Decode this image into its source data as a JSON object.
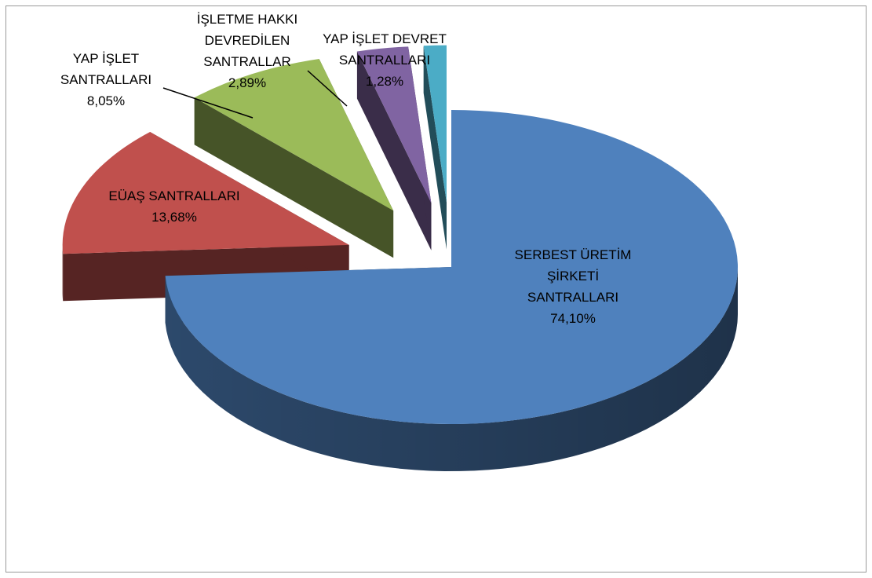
{
  "chart_data": {
    "type": "pie",
    "style": "3d-exploded",
    "slices": [
      {
        "label_lines": [
          "SERBEST ÜRETİM",
          "ŞİRKETİ",
          "SANTRALLARI"
        ],
        "value_text": "74,10%",
        "value": 74.1,
        "color": "#4F81BD"
      },
      {
        "label_lines": [
          "EÜAŞ SANTRALLARI"
        ],
        "value_text": "13,68%",
        "value": 13.68,
        "color": "#C0504D"
      },
      {
        "label_lines": [
          "YAP İŞLET",
          "SANTRALLARI"
        ],
        "value_text": "8,05%",
        "value": 8.05,
        "color": "#9BBB59"
      },
      {
        "label_lines": [
          "İŞLETME HAKKI",
          "DEVREDİLEN",
          "SANTRALLAR"
        ],
        "value_text": "2,89%",
        "value": 2.89,
        "color": "#8064A2"
      },
      {
        "label_lines": [
          "YAP İŞLET DEVRET",
          "SANTRALLARI"
        ],
        "value_text": "1,28%",
        "value": 1.28,
        "color": "#4BACC6"
      }
    ]
  }
}
